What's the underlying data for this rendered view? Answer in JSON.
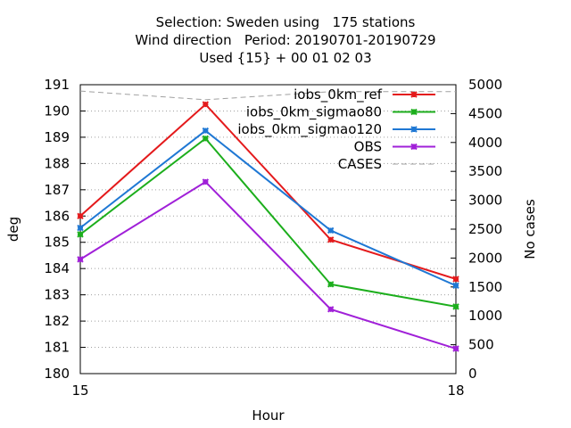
{
  "chart_data": {
    "type": "line",
    "title_lines": [
      "Selection: Sweden using   175 stations",
      "Wind direction   Period: 20190701-20190729",
      "Used {15} + 00 01 02 03"
    ],
    "xlabel": "Hour",
    "ylabel": "deg",
    "y2label": "No cases",
    "x": [
      15,
      16,
      17,
      18
    ],
    "xticks": [
      "15",
      "18"
    ],
    "xlim": [
      15,
      18
    ],
    "ylim": [
      180,
      191
    ],
    "yticks": [
      "180",
      "181",
      "182",
      "183",
      "184",
      "185",
      "186",
      "187",
      "188",
      "189",
      "190",
      "191"
    ],
    "y2lim": [
      0,
      5000
    ],
    "y2ticks": [
      "0",
      "500",
      "1000",
      "1500",
      "2000",
      "2500",
      "3000",
      "3500",
      "4000",
      "4500",
      "5000"
    ],
    "grid": true,
    "legend_position": "top-right",
    "series": [
      {
        "name": "iobs_0km_ref",
        "color": "#e41a1c",
        "values": [
          186.0,
          190.25,
          185.1,
          183.6
        ]
      },
      {
        "name": "iobs_0km_sigmao80",
        "color": "#1cae1c",
        "values": [
          185.3,
          188.95,
          183.4,
          182.55
        ]
      },
      {
        "name": "iobs_0km_sigmao120",
        "color": "#1f78d4",
        "values": [
          185.55,
          189.25,
          185.45,
          183.35
        ]
      },
      {
        "name": "OBS",
        "color": "#a020d8",
        "values": [
          184.35,
          187.3,
          182.45,
          180.95
        ]
      },
      {
        "name": "CASES",
        "color": "#a0a0a0",
        "axis": "y2",
        "dashed": true,
        "values": [
          4890,
          4740,
          4880,
          4880
        ]
      }
    ]
  }
}
